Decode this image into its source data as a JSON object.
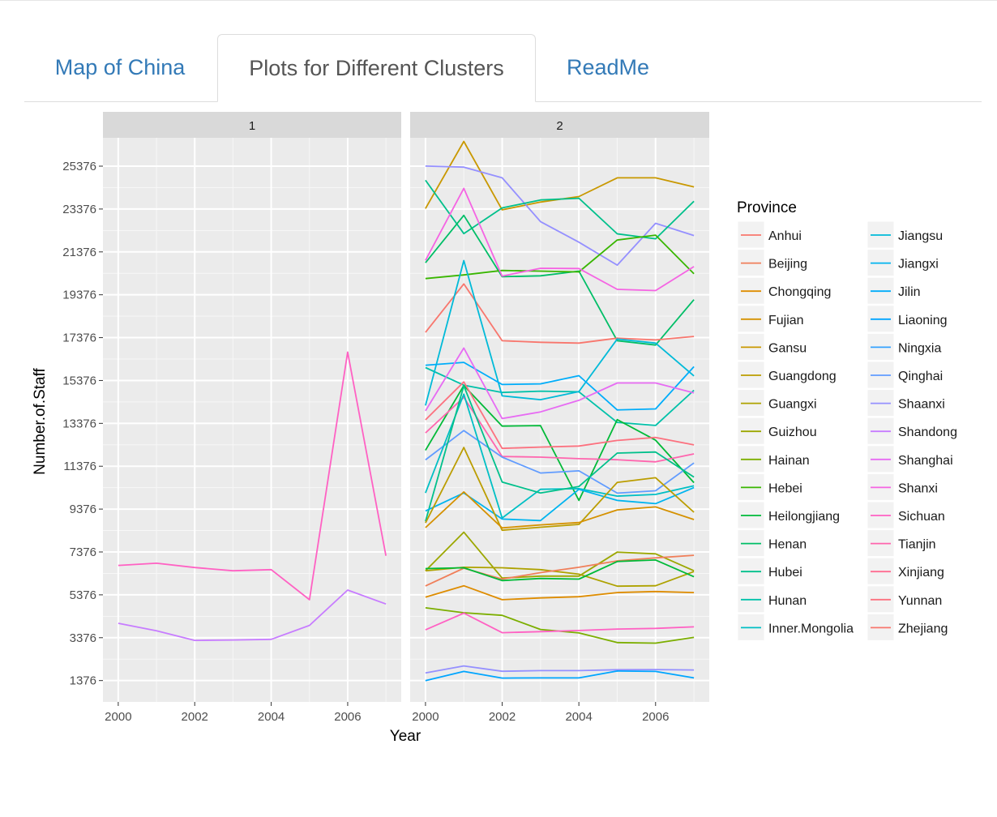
{
  "tabs": [
    {
      "label": "Map of China"
    },
    {
      "label": "Plots for Different Clusters"
    },
    {
      "label": "ReadMe"
    }
  ],
  "active_tab": 1,
  "chart_data": {
    "type": "line",
    "facet_labels": [
      "1",
      "2"
    ],
    "xlabel": "Year",
    "ylabel": "Number.of.Staff",
    "x": [
      2000,
      2001,
      2002,
      2003,
      2004,
      2005,
      2006,
      2007
    ],
    "x_ticks": [
      2000,
      2002,
      2004,
      2006
    ],
    "y_ticks": [
      1376,
      3376,
      5376,
      7376,
      9376,
      11376,
      13376,
      15376,
      17376,
      19376,
      21376,
      23376,
      25376
    ],
    "ylim": [
      380,
      26700
    ],
    "xlim": [
      1999.6,
      2007.4
    ],
    "grid": true,
    "legend_title": "Province",
    "legend_position": "right",
    "legend": [
      {
        "name": "Anhui",
        "color": "#F8766D"
      },
      {
        "name": "Beijing",
        "color": "#F07F5A"
      },
      {
        "name": "Chongqing",
        "color": "#DE8C00"
      },
      {
        "name": "Fujian",
        "color": "#D59100"
      },
      {
        "name": "Gansu",
        "color": "#C99800"
      },
      {
        "name": "Guangdong",
        "color": "#BB9D00"
      },
      {
        "name": "Guangxi",
        "color": "#AEA200"
      },
      {
        "name": "Guizhou",
        "color": "#9CA700"
      },
      {
        "name": "Hainan",
        "color": "#7CAE00"
      },
      {
        "name": "Hebei",
        "color": "#39B600"
      },
      {
        "name": "Heilongjiang",
        "color": "#00BA38"
      },
      {
        "name": "Henan",
        "color": "#00BE67"
      },
      {
        "name": "Hubei",
        "color": "#00C08B"
      },
      {
        "name": "Hunan",
        "color": "#00C1A9"
      },
      {
        "name": "Inner.Mongolia",
        "color": "#00BFC4"
      },
      {
        "name": "Jiangsu",
        "color": "#00BAD8"
      },
      {
        "name": "Jiangxi",
        "color": "#00B4EF"
      },
      {
        "name": "Jilin",
        "color": "#00ADFA"
      },
      {
        "name": "Liaoning",
        "color": "#00A5FF"
      },
      {
        "name": "Ningxia",
        "color": "#35A2FF"
      },
      {
        "name": "Qinghai",
        "color": "#619CFF"
      },
      {
        "name": "Shaanxi",
        "color": "#9590FF"
      },
      {
        "name": "Shandong",
        "color": "#C77CFF"
      },
      {
        "name": "Shanghai",
        "color": "#E76BF3"
      },
      {
        "name": "Shanxi",
        "color": "#F564E3"
      },
      {
        "name": "Sichuan",
        "color": "#FF61C3"
      },
      {
        "name": "Tianjin",
        "color": "#FF65AE"
      },
      {
        "name": "Xinjiang",
        "color": "#FF6C91"
      },
      {
        "name": "Yunnan",
        "color": "#FC717F"
      },
      {
        "name": "Zhejiang",
        "color": "#F8766D"
      }
    ],
    "panels": [
      {
        "series": [
          {
            "color": "#FF61C3",
            "values": [
              6750,
              6850,
              6650,
              6500,
              6550,
              5150,
              16700,
              7200
            ]
          },
          {
            "color": "#C77CFF",
            "values": [
              4050,
              3700,
              3250,
              3270,
              3300,
              3950,
              5600,
              4950
            ]
          }
        ]
      },
      {
        "series": [
          {
            "color": "#C99800",
            "values": [
              23400,
              26530,
              23340,
              23700,
              23960,
              24830,
              24830,
              24410
            ]
          },
          {
            "color": "#9590FF",
            "values": [
              25380,
              25330,
              24830,
              22790,
              21830,
              20760,
              22710,
              22140
            ]
          },
          {
            "color": "#00C08B",
            "values": [
              24720,
              22230,
              23430,
              23800,
              23880,
              22220,
              21990,
              23740
            ]
          },
          {
            "color": "#00BE67",
            "values": [
              20870,
              23080,
              20220,
              20260,
              20480,
              17230,
              17030,
              19150
            ]
          },
          {
            "color": "#39B600",
            "values": [
              20130,
              20300,
              20510,
              20480,
              20440,
              21930,
              22160,
              20360
            ]
          },
          {
            "color": "#F564E3",
            "values": [
              20980,
              24340,
              20250,
              20610,
              20600,
              19630,
              19570,
              20690
            ]
          },
          {
            "color": "#F8766D",
            "values": [
              17620,
              19880,
              17230,
              17160,
              17120,
              17350,
              17270,
              17430
            ]
          },
          {
            "color": "#00C1A9",
            "values": [
              15980,
              15160,
              14820,
              14880,
              14850,
              13420,
              13280,
              14920
            ]
          },
          {
            "color": "#00BAD8",
            "values": [
              14210,
              20970,
              14660,
              14480,
              14860,
              17310,
              17120,
              15590
            ]
          },
          {
            "color": "#00ADFA",
            "values": [
              16090,
              16220,
              15190,
              15220,
              15600,
              14000,
              14050,
              16020
            ]
          },
          {
            "color": "#E76BF3",
            "values": [
              13960,
              16890,
              13600,
              13910,
              14450,
              15260,
              15260,
              14800
            ]
          },
          {
            "color": "#00BA38",
            "values": [
              12120,
              15140,
              13250,
              13270,
              9780,
              13550,
              12590,
              10610
            ]
          },
          {
            "color": "#FC717F",
            "values": [
              13540,
              15310,
              12210,
              12270,
              12320,
              12580,
              12720,
              12370
            ]
          },
          {
            "color": "#FF65AE",
            "values": [
              12930,
              14590,
              11830,
              11800,
              11730,
              11680,
              11580,
              11950
            ]
          },
          {
            "color": "#619CFF",
            "values": [
              11670,
              13040,
              11800,
              11060,
              11160,
              10120,
              10230,
              11530
            ]
          },
          {
            "color": "#00BFC4",
            "values": [
              10130,
              14740,
              8960,
              10300,
              10330,
              9980,
              10060,
              10460
            ]
          },
          {
            "color": "#00C08B",
            "values": [
              8800,
              15130,
              10640,
              10130,
              10430,
              11990,
              12040,
              10870
            ]
          },
          {
            "color": "#00B4EF",
            "values": [
              9290,
              10130,
              8910,
              8840,
              10300,
              9780,
              9630,
              10380
            ]
          },
          {
            "color": "#BB9D00",
            "values": [
              8730,
              12250,
              8390,
              8530,
              8660,
              10620,
              10840,
              9230
            ]
          },
          {
            "color": "#D59100",
            "values": [
              8510,
              10180,
              8500,
              8640,
              8750,
              9340,
              9480,
              8890
            ]
          },
          {
            "color": "#9CA700",
            "values": [
              6500,
              8300,
              6160,
              6250,
              6250,
              7370,
              7290,
              6500
            ]
          },
          {
            "color": "#AEA200",
            "values": [
              6500,
              6660,
              6640,
              6550,
              6340,
              5780,
              5800,
              6460
            ]
          },
          {
            "color": "#F07F5A",
            "values": [
              5790,
              6620,
              6110,
              6410,
              6660,
              6960,
              7100,
              7220
            ]
          },
          {
            "color": "#00BA38",
            "values": [
              6600,
              6640,
              6040,
              6140,
              6110,
              6930,
              7000,
              6220
            ]
          },
          {
            "color": "#DE8C00",
            "values": [
              5270,
              5800,
              5150,
              5230,
              5290,
              5480,
              5530,
              5480
            ]
          },
          {
            "color": "#7CAE00",
            "values": [
              4770,
              4540,
              4420,
              3760,
              3600,
              3150,
              3120,
              3390
            ]
          },
          {
            "color": "#FF61C3",
            "values": [
              3740,
              4520,
              3610,
              3660,
              3710,
              3780,
              3810,
              3880
            ]
          },
          {
            "color": "#9590FF",
            "values": [
              1730,
              2060,
              1810,
              1840,
              1840,
              1880,
              1890,
              1870
            ]
          },
          {
            "color": "#00A5FF",
            "values": [
              1370,
              1800,
              1490,
              1500,
              1500,
              1820,
              1800,
              1500
            ]
          }
        ]
      }
    ]
  }
}
